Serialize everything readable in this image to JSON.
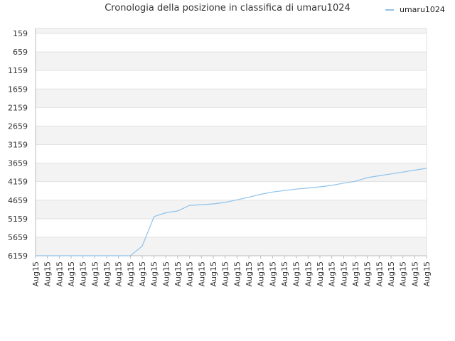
{
  "colors": {
    "series_line": "#8ec2ec",
    "band_fill": "#f3f3f3",
    "grid": "#e2e2e2",
    "axis": "#bbbbbb"
  },
  "chart_data": {
    "type": "line",
    "title": "Cronologia della posizione in classifica di umaru1024",
    "legend": {
      "position": "top-right",
      "entries": [
        "umaru1024"
      ]
    },
    "y_axis": {
      "reversed": true,
      "min": 159,
      "max": 6159,
      "tick_labels": [
        "159",
        "659",
        "1159",
        "1659",
        "2159",
        "2659",
        "3159",
        "3659",
        "4159",
        "4659",
        "5159",
        "5659",
        "6159"
      ]
    },
    "x_axis": {
      "tick_labels": [
        "Aug15",
        "Aug15",
        "Aug15",
        "Aug15",
        "Aug15",
        "Aug15",
        "Aug15",
        "Aug15",
        "Aug15",
        "Aug15",
        "Aug15",
        "Aug15",
        "Aug15",
        "Aug15",
        "Aug15",
        "Aug15",
        "Aug15",
        "Aug15",
        "Aug15",
        "Aug15",
        "Aug15",
        "Aug15",
        "Aug15",
        "Aug15",
        "Aug15",
        "Aug15",
        "Aug15",
        "Aug15",
        "Aug15",
        "Aug15",
        "Aug15",
        "Aug15",
        "Aug15",
        "Aug15"
      ]
    },
    "grid": true,
    "series": [
      {
        "name": "umaru1024",
        "x": [
          0,
          1,
          2,
          3,
          4,
          5,
          6,
          7,
          8,
          9,
          10,
          11,
          12,
          13,
          14,
          15,
          16,
          17,
          18,
          19,
          20,
          21,
          22,
          23,
          24,
          25,
          26,
          27,
          27.5,
          28,
          29,
          30,
          31,
          32,
          33
        ],
        "values": [
          6159,
          6159,
          6159,
          6159,
          6159,
          6159,
          6159,
          6159,
          6159,
          5900,
          5100,
          5000,
          4950,
          4800,
          4780,
          4760,
          4720,
          4650,
          4580,
          4500,
          4440,
          4400,
          4360,
          4330,
          4300,
          4260,
          4200,
          4150,
          4100,
          4050,
          4000,
          3950,
          3900,
          3850,
          3800
        ]
      }
    ]
  }
}
